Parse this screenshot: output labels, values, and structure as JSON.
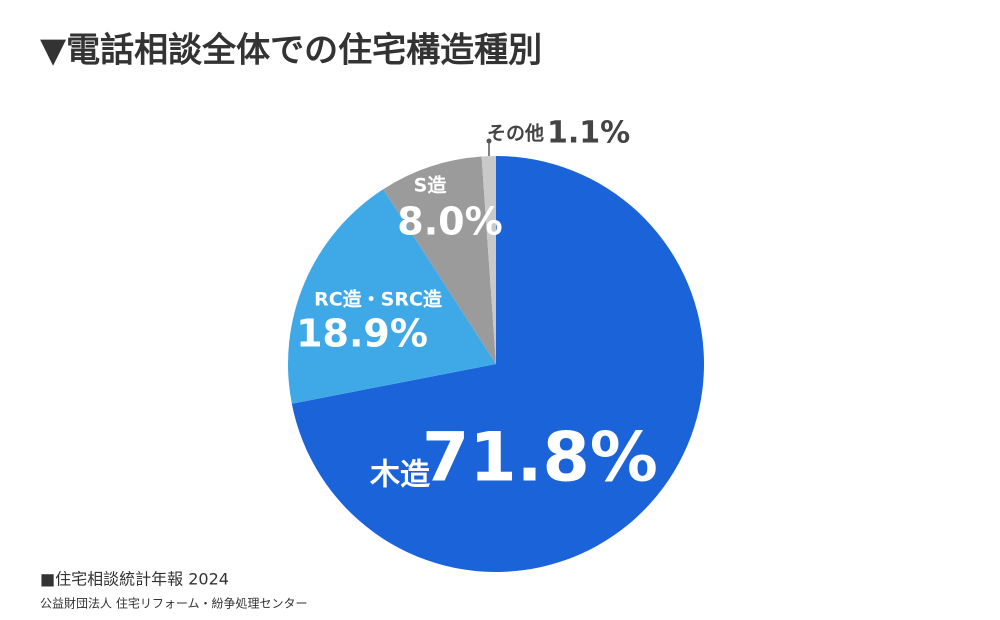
{
  "chart_data": {
    "type": "pie",
    "title": "▼電話相談全体での住宅構造種別",
    "categories": [
      "木造",
      "RC造・SRC造",
      "S造",
      "その他"
    ],
    "values": [
      71.8,
      18.9,
      8.0,
      1.1
    ],
    "value_labels": [
      "71.8%",
      "18.9%",
      "8.0%",
      "1.1%"
    ],
    "colors": [
      "#1a63d8",
      "#3fa9e8",
      "#9b9b9b",
      "#c9c9c9"
    ],
    "source": "■住宅相談統計年報 2024",
    "publisher": "公益財団法人 住宅リフォーム・紛争処理センター"
  }
}
